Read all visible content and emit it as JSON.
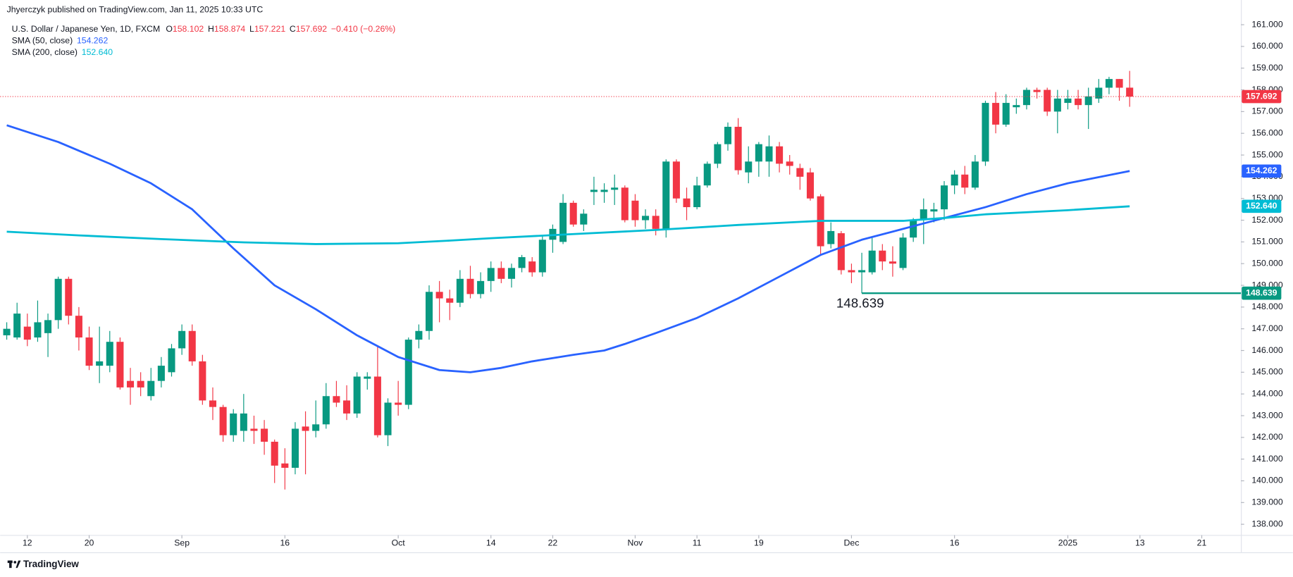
{
  "header": {
    "author_line": "Jhyerczyk published on TradingView.com, Jan 11, 2025 10:33 UTC"
  },
  "footer": {
    "brand": "TradingView"
  },
  "chart_data": {
    "type": "candlestick",
    "title": "U.S. Dollar / Japanese Yen, 1D, FXCM",
    "legend_letters": {
      "open": "O",
      "high": "H",
      "low": "L",
      "close": "C"
    },
    "change": "−0.410 (−0.26%)",
    "up_color": "#089981",
    "down_color": "#f23645",
    "ohlc": {
      "open": [
        146.7,
        146.6,
        147.1,
        146.6,
        146.8,
        147.4,
        149.3,
        147.6,
        146.6,
        145.3,
        145.3,
        146.4,
        144.6,
        144.6,
        143.9,
        144.6,
        145.0,
        146.1,
        146.9,
        145.5,
        143.7,
        143.4,
        142.1,
        142.3,
        142.4,
        142.4,
        141.8,
        140.8,
        140.6,
        142.5,
        142.3,
        142.6,
        143.9,
        143.7,
        143.1,
        144.7,
        144.8,
        142.1,
        143.6,
        143.5,
        146.5,
        146.9,
        148.7,
        148.4,
        148.2,
        149.3,
        148.6,
        149.2,
        149.8,
        149.3,
        149.8,
        150.1,
        149.6,
        151.1,
        151.0,
        152.8,
        151.8,
        153.3,
        153.3,
        153.4,
        153.5,
        152.9,
        152.0,
        152.2,
        151.6,
        154.7,
        153.0,
        152.6,
        153.6,
        154.6,
        155.5,
        156.3,
        154.2,
        154.7,
        154.7,
        155.4,
        154.7,
        154.4,
        154.2,
        153.1,
        150.9,
        151.4,
        149.7,
        149.6,
        149.6,
        150.6,
        150.1,
        149.8,
        151.2,
        152.0,
        152.4,
        152.5,
        153.6,
        154.1,
        153.5,
        154.7,
        157.4,
        156.4,
        157.2,
        157.3,
        158.0,
        158.0,
        157.0,
        157.4,
        157.6,
        157.3,
        157.6,
        158.1,
        158.5,
        158.102
      ],
      "high": [
        147.3,
        148.2,
        147.7,
        148.3,
        147.7,
        149.4,
        149.4,
        148.0,
        147.1,
        147.1,
        146.9,
        146.6,
        145.2,
        145.0,
        145.2,
        145.7,
        146.3,
        147.2,
        147.2,
        145.8,
        144.3,
        143.5,
        143.3,
        144.0,
        143.0,
        142.8,
        141.9,
        141.5,
        142.7,
        143.2,
        143.7,
        144.5,
        144.6,
        144.4,
        145.0,
        145.0,
        146.2,
        143.8,
        144.6,
        146.6,
        147.2,
        149.0,
        149.2,
        148.8,
        149.7,
        149.9,
        149.6,
        150.1,
        150.1,
        150.0,
        150.4,
        150.3,
        151.3,
        151.8,
        153.2,
        152.9,
        152.5,
        154.0,
        153.7,
        154.1,
        153.6,
        153.2,
        152.5,
        152.5,
        154.8,
        154.8,
        153.5,
        154.0,
        154.7,
        155.6,
        156.5,
        156.7,
        155.4,
        155.6,
        155.9,
        155.6,
        155.0,
        154.6,
        154.4,
        153.2,
        151.9,
        151.5,
        150.0,
        150.5,
        151.2,
        150.9,
        150.8,
        151.4,
        152.1,
        153.0,
        152.8,
        153.8,
        154.3,
        154.5,
        155.0,
        157.5,
        157.9,
        157.8,
        157.6,
        158.1,
        158.1,
        158.1,
        158.0,
        158.0,
        158.0,
        158.1,
        158.5,
        158.6,
        158.5,
        158.874
      ],
      "low": [
        146.5,
        146.5,
        146.2,
        146.4,
        145.7,
        147.0,
        147.2,
        146.0,
        145.1,
        144.5,
        145.0,
        144.2,
        143.5,
        143.9,
        143.7,
        144.3,
        144.8,
        145.8,
        145.3,
        143.5,
        142.8,
        141.8,
        141.8,
        141.8,
        141.7,
        141.2,
        139.9,
        139.6,
        140.3,
        140.3,
        142.0,
        142.4,
        143.4,
        142.8,
        142.9,
        144.2,
        142.0,
        141.6,
        143.0,
        143.3,
        146.1,
        146.5,
        147.3,
        147.4,
        148.0,
        148.4,
        148.4,
        148.7,
        149.1,
        148.9,
        149.6,
        149.4,
        149.4,
        150.5,
        150.9,
        151.7,
        151.5,
        152.7,
        152.8,
        152.7,
        151.9,
        151.7,
        151.6,
        151.3,
        151.2,
        152.8,
        152.0,
        152.5,
        153.5,
        154.4,
        155.2,
        154.1,
        153.7,
        154.0,
        154.0,
        154.2,
        154.1,
        153.4,
        152.9,
        150.4,
        150.7,
        149.5,
        149.1,
        148.639,
        149.5,
        149.7,
        149.4,
        149.7,
        151.0,
        150.9,
        151.9,
        152.0,
        153.2,
        153.2,
        153.4,
        154.5,
        156.0,
        156.3,
        156.9,
        157.1,
        157.6,
        156.8,
        156.0,
        157.1,
        157.1,
        156.2,
        157.4,
        157.8,
        157.5,
        157.221
      ],
      "close": [
        147.0,
        147.7,
        146.5,
        147.3,
        147.4,
        149.3,
        147.6,
        146.6,
        145.3,
        145.5,
        146.4,
        144.3,
        144.3,
        144.3,
        144.6,
        145.3,
        146.1,
        146.9,
        145.5,
        143.7,
        143.4,
        142.1,
        143.1,
        143.1,
        142.3,
        141.8,
        140.7,
        140.6,
        142.4,
        142.3,
        142.6,
        143.9,
        143.6,
        143.1,
        144.8,
        144.8,
        142.1,
        143.6,
        143.5,
        146.5,
        146.9,
        148.7,
        148.4,
        148.2,
        149.3,
        148.6,
        149.2,
        149.8,
        149.3,
        149.8,
        150.3,
        149.6,
        151.1,
        151.6,
        152.8,
        151.8,
        152.3,
        153.4,
        153.4,
        153.5,
        152.0,
        152.0,
        152.2,
        151.6,
        154.7,
        153.0,
        152.6,
        153.6,
        154.6,
        155.5,
        156.3,
        154.3,
        154.7,
        155.5,
        155.4,
        154.6,
        154.5,
        154.0,
        153.0,
        150.8,
        151.5,
        149.7,
        149.6,
        149.7,
        150.6,
        150.1,
        150.0,
        151.2,
        152.0,
        152.5,
        152.5,
        153.6,
        154.1,
        153.5,
        154.7,
        157.4,
        156.4,
        157.4,
        157.3,
        158.0,
        157.9,
        157.0,
        157.6,
        157.6,
        157.3,
        157.7,
        158.1,
        158.5,
        158.1,
        157.692
      ]
    },
    "series": [
      {
        "name": "SMA (50, close)",
        "color": "#2962ff",
        "x": [
          0,
          5,
          10,
          14,
          18,
          22,
          26,
          30,
          34,
          38,
          42,
          45,
          48,
          51,
          55,
          58,
          60,
          63,
          67,
          71,
          75,
          79,
          83,
          87,
          91,
          95,
          99,
          103,
          109
        ],
        "values": [
          156.37,
          155.6,
          154.6,
          153.7,
          152.5,
          150.7,
          149.0,
          147.9,
          146.7,
          145.7,
          145.1,
          145.0,
          145.2,
          145.5,
          145.8,
          146.0,
          146.3,
          146.8,
          147.5,
          148.4,
          149.4,
          150.4,
          151.1,
          151.6,
          152.1,
          152.6,
          153.2,
          153.7,
          154.262
        ]
      },
      {
        "name": "SMA (200, close)",
        "color": "#00bcd4",
        "x": [
          0,
          7,
          15,
          23,
          30,
          38,
          43,
          47,
          55,
          63,
          71,
          79,
          87,
          91,
          95,
          103,
          109
        ],
        "values": [
          151.47,
          151.3,
          151.13,
          150.98,
          150.9,
          150.94,
          151.06,
          151.17,
          151.36,
          151.55,
          151.78,
          151.97,
          151.97,
          152.1,
          152.27,
          152.46,
          152.64
        ],
        "value_labels": [
          null,
          null,
          null,
          null,
          null,
          null,
          null,
          null,
          null,
          null,
          null,
          null,
          null,
          null,
          null,
          null,
          "152.640"
        ]
      }
    ],
    "hlines": [
      {
        "value": 148.639,
        "x": 83,
        "color": "#089981"
      }
    ],
    "xlim": [
      -0.64,
      119.8
    ],
    "ylim": [
      137.5,
      161.5
    ],
    "xticks": [
      {
        "value": 2,
        "label": "12"
      },
      {
        "value": 8,
        "label": "20"
      },
      {
        "value": 17,
        "label": "Sep"
      },
      {
        "value": 27,
        "label": "16"
      },
      {
        "value": 38,
        "label": "Oct"
      },
      {
        "value": 47,
        "label": "14"
      },
      {
        "value": 53,
        "label": "22"
      },
      {
        "value": 61,
        "label": "Nov"
      },
      {
        "value": 67,
        "label": "11"
      },
      {
        "value": 73,
        "label": "19"
      },
      {
        "value": 82,
        "label": "Dec"
      },
      {
        "value": 92,
        "label": "16"
      },
      {
        "value": 103,
        "label": "2025"
      },
      {
        "value": 110,
        "label": "13"
      },
      {
        "value": 116,
        "label": "21"
      }
    ],
    "yticks": [
      {
        "value": 138,
        "label": "138.000"
      },
      {
        "value": 139,
        "label": "139.000"
      },
      {
        "value": 140,
        "label": "140.000"
      },
      {
        "value": 141,
        "label": "141.000"
      },
      {
        "value": 142,
        "label": "142.000"
      },
      {
        "value": 143,
        "label": "143.000"
      },
      {
        "value": 144,
        "label": "144.000"
      },
      {
        "value": 145,
        "label": "145.000"
      },
      {
        "value": 146,
        "label": "146.000"
      },
      {
        "value": 147,
        "label": "147.000"
      },
      {
        "value": 148,
        "label": "148.000"
      },
      {
        "value": 149,
        "label": "149.000"
      },
      {
        "value": 150,
        "label": "150.000"
      },
      {
        "value": 151,
        "label": "151.000"
      },
      {
        "value": 152,
        "label": "152.000"
      },
      {
        "value": 153,
        "label": "153.000"
      },
      {
        "value": 154,
        "label": "154.000"
      },
      {
        "value": 155,
        "label": "155.000"
      },
      {
        "value": 156,
        "label": "156.000"
      },
      {
        "value": 157,
        "label": "157.000"
      },
      {
        "value": 158,
        "label": "158.000"
      },
      {
        "value": 159,
        "label": "159.000"
      },
      {
        "value": 160,
        "label": "160.000"
      },
      {
        "value": 161,
        "label": "161.000"
      }
    ],
    "grid": false
  }
}
